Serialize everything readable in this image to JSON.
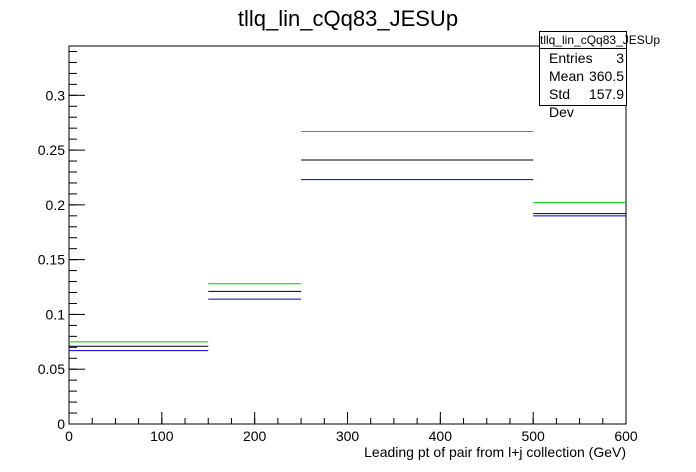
{
  "chart_data": {
    "type": "step",
    "title": "tllq_lin_cQq83_JESUp",
    "xlabel": "Leading pt of pair from l+j collection (GeV)",
    "ylabel": "",
    "xlim": [
      0,
      600
    ],
    "ylim": [
      0,
      0.345
    ],
    "x_ticks": [
      0,
      100,
      200,
      300,
      400,
      500,
      600
    ],
    "y_ticks": [
      0,
      0.05,
      0.1,
      0.15,
      0.2,
      0.25,
      0.3
    ],
    "x_tick_labels": [
      "0",
      "100",
      "200",
      "300",
      "400",
      "500",
      "600"
    ],
    "y_tick_labels": [
      "0",
      "0.05",
      "0.1",
      "0.15",
      "0.2",
      "0.25",
      "0.3"
    ],
    "bin_edges": [
      0,
      150,
      250,
      500,
      600
    ],
    "series": [
      {
        "color": "#00cc00",
        "values": [
          0.075,
          0.128,
          0.267,
          0.202
        ]
      },
      {
        "color": "#000000",
        "values": [
          0.071,
          0.121,
          0.241,
          0.192
        ]
      },
      {
        "color": "#0000cc",
        "values": [
          0.067,
          0.114,
          0.223,
          0.19
        ]
      }
    ],
    "stats": {
      "name": "tllq_lin_cQq83_JESUp",
      "rows": [
        {
          "label": "Entries",
          "value": "3"
        },
        {
          "label": "Mean",
          "value": "360.5"
        },
        {
          "label": "Std Dev",
          "value": "157.9"
        }
      ]
    }
  }
}
